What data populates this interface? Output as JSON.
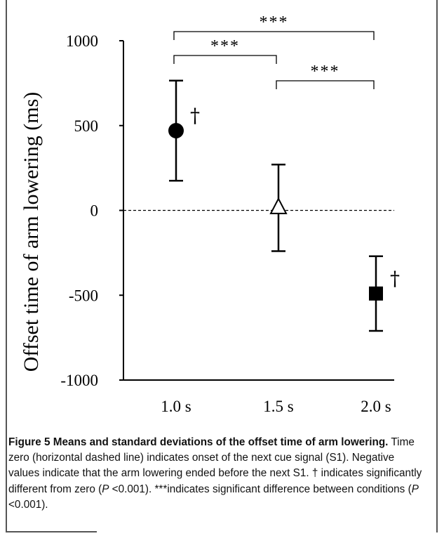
{
  "chart_data": {
    "type": "scatter",
    "ylabel": "Offset time  of arm lowering (ms)",
    "ylim": [
      -1000,
      1000
    ],
    "yticks": [
      1000,
      500,
      0,
      -500,
      -1000
    ],
    "categories": [
      "1.0 s",
      "1.5 s",
      "2.0 s"
    ],
    "points": [
      {
        "category": "1.0 s",
        "mean": 470,
        "sd": 295,
        "marker": "filled-circle",
        "dagger": true
      },
      {
        "category": "1.5 s",
        "mean": 15,
        "sd": 255,
        "marker": "open-triangle",
        "dagger": false
      },
      {
        "category": "2.0 s",
        "mean": -490,
        "sd": 220,
        "marker": "filled-square",
        "dagger": true
      }
    ],
    "reference_line": {
      "y": 0,
      "style": "dashed"
    },
    "significance": [
      {
        "from": "1.0 s",
        "to": "2.0 s",
        "label": "***"
      },
      {
        "from": "1.0 s",
        "to": "1.5 s",
        "label": "***"
      },
      {
        "from": "1.5 s",
        "to": "2.0 s",
        "label": "***"
      }
    ],
    "dagger_symbol": "†"
  },
  "caption": {
    "title": "Figure 5 Means and standard deviations of the offset time of arm lowering.",
    "seg1": " Time zero (horizontal dashed line) indicates onset of the next cue signal (S1). Negative values indicate that the arm lowering ended before the next S1. † indicates significantly different from zero (",
    "p1": "P",
    "seg2": " <0.001). ***indicates significant difference between conditions (",
    "p2": "P",
    "seg3": " <0.001)."
  }
}
